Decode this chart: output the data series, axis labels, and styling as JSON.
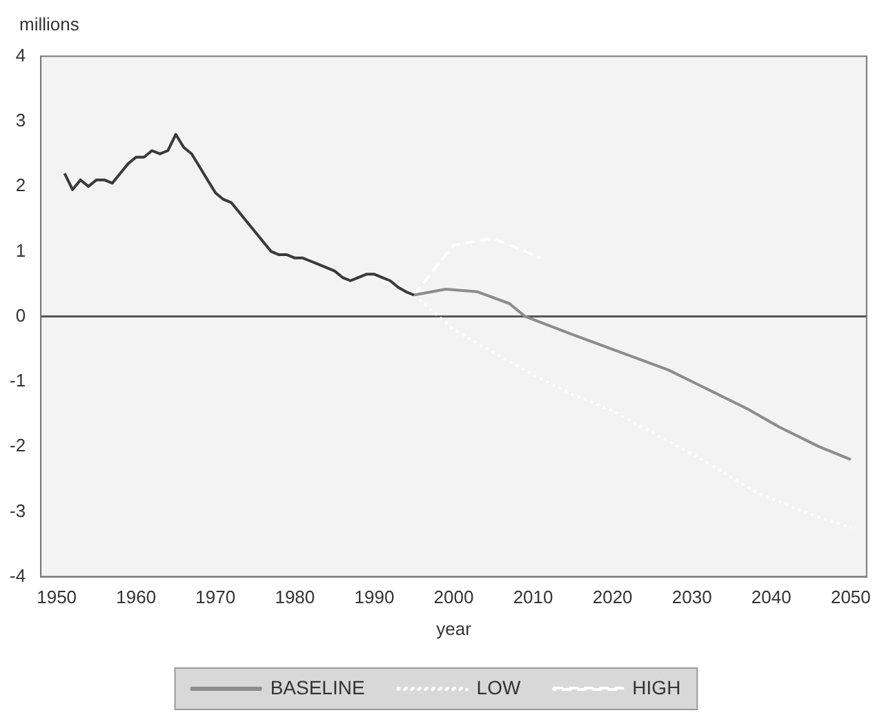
{
  "chart_data": {
    "type": "line",
    "xlabel": "year",
    "ylabel": "millions",
    "xlim": [
      1948,
      2052
    ],
    "xticks": [
      1950,
      1960,
      1970,
      1980,
      1990,
      2000,
      2010,
      2020,
      2030,
      2040,
      2050
    ],
    "ylim": [
      -4,
      4
    ],
    "yticks": [
      -4,
      -3,
      -2,
      -1,
      0,
      1,
      2,
      3,
      4
    ],
    "grid": false,
    "legend": "bottom",
    "marker": "none",
    "ref_lines": [
      {
        "axis": "y",
        "value": 0,
        "color": "#555555"
      }
    ],
    "series": [
      {
        "color": "#3a3a3a",
        "line_style": "solid",
        "x": [
          1951,
          1952,
          1953,
          1954,
          1955,
          1956,
          1957,
          1958,
          1959,
          1960,
          1961,
          1962,
          1963,
          1964,
          1965,
          1966,
          1967,
          1968,
          1969,
          1970,
          1971,
          1972,
          1973,
          1974,
          1975,
          1976,
          1977,
          1978,
          1979,
          1980,
          1981,
          1982,
          1983,
          1984,
          1985,
          1986,
          1987,
          1988,
          1989,
          1990,
          1991,
          1992,
          1993,
          1994,
          1995
        ],
        "values": [
          2.2,
          1.95,
          2.1,
          2.0,
          2.1,
          2.1,
          2.05,
          2.2,
          2.35,
          2.45,
          2.45,
          2.55,
          2.5,
          2.55,
          2.8,
          2.6,
          2.5,
          2.3,
          2.1,
          1.9,
          1.8,
          1.75,
          1.6,
          1.45,
          1.3,
          1.15,
          1.0,
          0.95,
          0.95,
          0.9,
          0.9,
          0.85,
          0.8,
          0.75,
          0.7,
          0.6,
          0.55,
          0.6,
          0.65,
          0.65,
          0.6,
          0.55,
          0.45,
          0.38,
          0.33
        ]
      },
      {
        "name": "BASELINE",
        "color": "#8c8c8c",
        "line_style": "solid",
        "x": [
          1995,
          1999,
          2003,
          2007,
          2009,
          2015,
          2021,
          2027,
          2032,
          2037,
          2041,
          2046,
          2050
        ],
        "values": [
          0.33,
          0.42,
          0.38,
          0.2,
          0,
          -0.28,
          -0.55,
          -0.82,
          -1.12,
          -1.42,
          -1.7,
          -2.0,
          -2.2
        ]
      },
      {
        "name": "LOW",
        "color": "#ffffff",
        "line_style": "dotted",
        "x": [
          1995,
          2000,
          2005,
          2010,
          2015,
          2020,
          2026,
          2032,
          2038,
          2044,
          2050
        ],
        "values": [
          0.33,
          -0.2,
          -0.55,
          -0.9,
          -1.2,
          -1.45,
          -1.85,
          -2.25,
          -2.7,
          -3.0,
          -3.25
        ]
      },
      {
        "name": "HIGH",
        "color": "#ffffff",
        "line_style": "dashed",
        "x": [
          1995,
          2000,
          2005,
          2011
        ],
        "values": [
          0.33,
          1.1,
          1.2,
          0.9
        ]
      }
    ]
  }
}
